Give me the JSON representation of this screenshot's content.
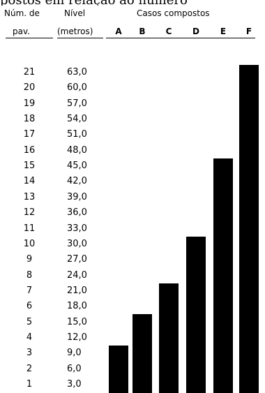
{
  "caption_fragment": "postos em relação ao número",
  "header": {
    "col1_line1": "Núm. de",
    "col1_line2": "pav.",
    "col2_line1": "Nível",
    "col2_line2": "(metros)",
    "group_title": "Casos compostos"
  },
  "chart_data": {
    "type": "bar",
    "categories": [
      "A",
      "B",
      "C",
      "D",
      "E",
      "F"
    ],
    "values": [
      3,
      5,
      7,
      10,
      15,
      21
    ],
    "ylim": [
      0,
      21
    ],
    "rows": [
      {
        "floor": "21",
        "level": "63,0"
      },
      {
        "floor": "20",
        "level": "60,0"
      },
      {
        "floor": "19",
        "level": "57,0"
      },
      {
        "floor": "18",
        "level": "54,0"
      },
      {
        "floor": "17",
        "level": "51,0"
      },
      {
        "floor": "16",
        "level": "48,0"
      },
      {
        "floor": "15",
        "level": "45,0"
      },
      {
        "floor": "14",
        "level": "42,0"
      },
      {
        "floor": "13",
        "level": "39,0"
      },
      {
        "floor": "12",
        "level": "36,0"
      },
      {
        "floor": "11",
        "level": "33,0"
      },
      {
        "floor": "10",
        "level": "30,0"
      },
      {
        "floor": "9",
        "level": "27,0"
      },
      {
        "floor": "8",
        "level": "24,0"
      },
      {
        "floor": "7",
        "level": "21,0"
      },
      {
        "floor": "6",
        "level": "18,0"
      },
      {
        "floor": "5",
        "level": "15,0"
      },
      {
        "floor": "4",
        "level": "12,0"
      },
      {
        "floor": "3",
        "level": "9,0"
      },
      {
        "floor": "2",
        "level": "6,0"
      },
      {
        "floor": "1",
        "level": "3,0"
      }
    ],
    "grid": false,
    "legend": "none",
    "bar_color": "#000000"
  }
}
